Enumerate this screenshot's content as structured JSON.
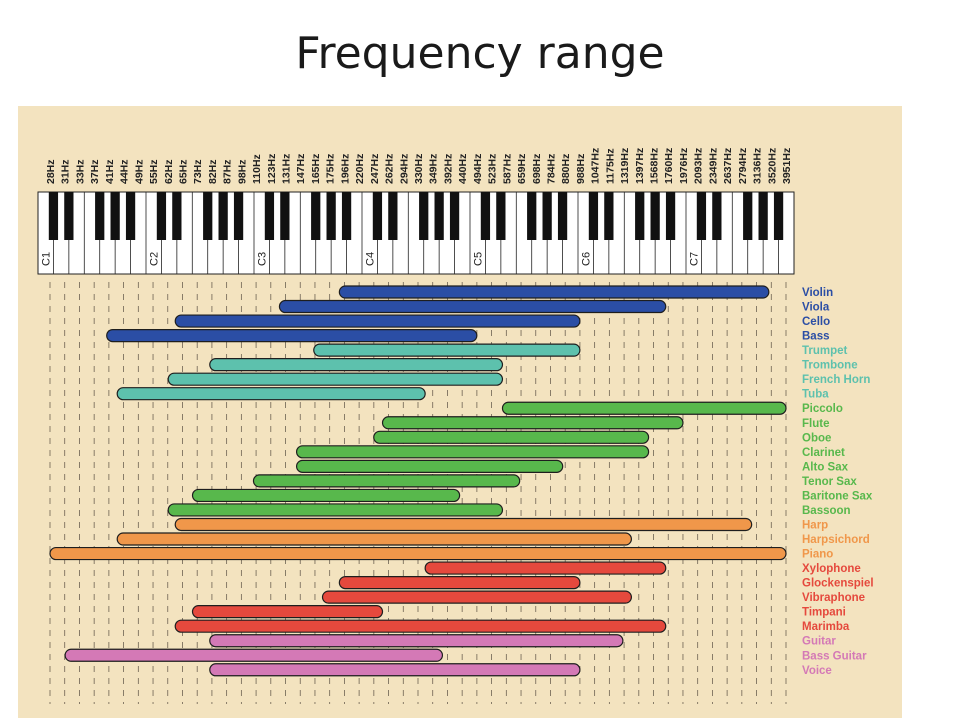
{
  "title": "Frequency range",
  "chart_data": {
    "type": "bar",
    "orientation": "horizontal-range",
    "scale": "log2",
    "colors": {
      "strings": "#2b4ea5",
      "brass": "#5dc1ad",
      "woodwinds": "#58b84c",
      "keyboards": "#f0974a",
      "percussion": "#e5493d",
      "guitars_voice": "#d479b6"
    },
    "frequency_ticks": [
      "28Hz",
      "31Hz",
      "33Hz",
      "37Hz",
      "41Hz",
      "44Hz",
      "49Hz",
      "55Hz",
      "62Hz",
      "65Hz",
      "73Hz",
      "82Hz",
      "87Hz",
      "98Hz",
      "110Hz",
      "123Hz",
      "131Hz",
      "147Hz",
      "165Hz",
      "175Hz",
      "196Hz",
      "220Hz",
      "247Hz",
      "262Hz",
      "294Hz",
      "330Hz",
      "349Hz",
      "392Hz",
      "440Hz",
      "494Hz",
      "523Hz",
      "587Hz",
      "659Hz",
      "698Hz",
      "784Hz",
      "880Hz",
      "988Hz",
      "1047Hz",
      "1175Hz",
      "1319Hz",
      "1397Hz",
      "1568Hz",
      "1760Hz",
      "1976Hz",
      "2093Hz",
      "2349Hz",
      "2637Hz",
      "2794Hz",
      "3136Hz",
      "3520Hz",
      "3951Hz"
    ],
    "octave_labels": [
      {
        "label": "C1",
        "hz": 33
      },
      {
        "label": "C2",
        "hz": 65
      },
      {
        "label": "C3",
        "hz": 131
      },
      {
        "label": "C4",
        "hz": 262
      },
      {
        "label": "C5",
        "hz": 523
      },
      {
        "label": "C6",
        "hz": 1047
      },
      {
        "label": "C7",
        "hz": 2093
      }
    ],
    "series": [
      {
        "name": "Violin",
        "group": "strings",
        "low": 196,
        "high": 3520
      },
      {
        "name": "Viola",
        "group": "strings",
        "low": 131,
        "high": 1760
      },
      {
        "name": "Cello",
        "group": "strings",
        "low": 65,
        "high": 988
      },
      {
        "name": "Bass",
        "group": "strings",
        "low": 41,
        "high": 494
      },
      {
        "name": "Trumpet",
        "group": "brass",
        "low": 165,
        "high": 988
      },
      {
        "name": "Trombone",
        "group": "brass",
        "low": 82,
        "high": 587
      },
      {
        "name": "French Horn",
        "group": "brass",
        "low": 62,
        "high": 587
      },
      {
        "name": "Tuba",
        "group": "brass",
        "low": 44,
        "high": 349
      },
      {
        "name": "Piccolo",
        "group": "woodwinds",
        "low": 587,
        "high": 3951
      },
      {
        "name": "Flute",
        "group": "woodwinds",
        "low": 262,
        "high": 1976
      },
      {
        "name": "Oboe",
        "group": "woodwinds",
        "low": 247,
        "high": 1568
      },
      {
        "name": "Clarinet",
        "group": "woodwinds",
        "low": 147,
        "high": 1568
      },
      {
        "name": "Alto Sax",
        "group": "woodwinds",
        "low": 147,
        "high": 880
      },
      {
        "name": "Tenor Sax",
        "group": "woodwinds",
        "low": 110,
        "high": 659
      },
      {
        "name": "Baritone Sax",
        "group": "woodwinds",
        "low": 73,
        "high": 440
      },
      {
        "name": "Bassoon",
        "group": "woodwinds",
        "low": 62,
        "high": 587
      },
      {
        "name": "Harp",
        "group": "keyboards",
        "low": 65,
        "high": 3136
      },
      {
        "name": "Harpsichord",
        "group": "keyboards",
        "low": 44,
        "high": 1397
      },
      {
        "name": "Piano",
        "group": "keyboards",
        "low": 28,
        "high": 3951
      },
      {
        "name": "Xylophone",
        "group": "percussion",
        "low": 349,
        "high": 1760
      },
      {
        "name": "Glockenspiel",
        "group": "percussion",
        "low": 196,
        "high": 988
      },
      {
        "name": "Vibraphone",
        "group": "percussion",
        "low": 175,
        "high": 1397
      },
      {
        "name": "Timpani",
        "group": "percussion",
        "low": 73,
        "high": 262
      },
      {
        "name": "Marimba",
        "group": "percussion",
        "low": 65,
        "high": 1760
      },
      {
        "name": "Guitar",
        "group": "guitars_voice",
        "low": 82,
        "high": 1319
      },
      {
        "name": "Bass Guitar",
        "group": "guitars_voice",
        "low": 31,
        "high": 392
      },
      {
        "name": "Voice",
        "group": "guitars_voice",
        "low": 82,
        "high": 988
      }
    ]
  }
}
